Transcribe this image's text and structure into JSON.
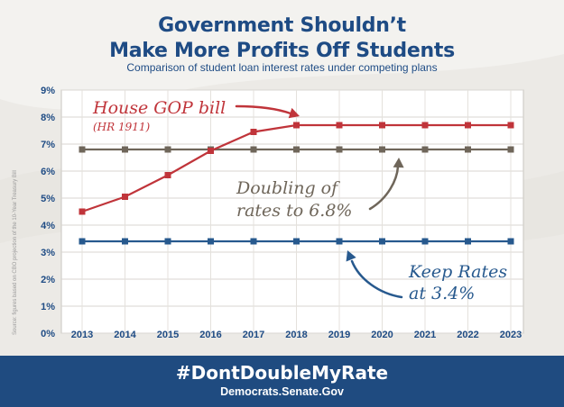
{
  "header": {
    "title_line1": "Government Shouldn’t",
    "title_line2": "Make More Profits Off Students",
    "subtitle": "Comparison of student loan interest rates under competing plans"
  },
  "source_note": "Source: figures based on CBO projection of the 10-Year Treasury Bill",
  "footer": {
    "hashtag": "#DontDoubleMyRate",
    "site": "Democrats.Senate.Gov"
  },
  "colors": {
    "title": "#1e4b84",
    "house_gop": "#c0343a",
    "doubling": "#6f665a",
    "keep_rates": "#27598e",
    "footer_bg": "#1f4b80"
  },
  "chart_data": {
    "type": "line",
    "x": [
      "2013",
      "2014",
      "2015",
      "2016",
      "2017",
      "2018",
      "2019",
      "2020",
      "2021",
      "2022",
      "2023"
    ],
    "y_ticks": [
      "0%",
      "1%",
      "2%",
      "3%",
      "4%",
      "5%",
      "6%",
      "7%",
      "8%",
      "9%"
    ],
    "ylim": [
      0,
      9
    ],
    "grid": true,
    "series": [
      {
        "key": "house_gop",
        "values": [
          4.5,
          5.05,
          5.85,
          6.75,
          7.45,
          7.7,
          7.7,
          7.7,
          7.7,
          7.7,
          7.7
        ]
      },
      {
        "key": "doubling",
        "values": [
          6.8,
          6.8,
          6.8,
          6.8,
          6.8,
          6.8,
          6.8,
          6.8,
          6.8,
          6.8,
          6.8
        ]
      },
      {
        "key": "keep_rates",
        "values": [
          3.4,
          3.4,
          3.4,
          3.4,
          3.4,
          3.4,
          3.4,
          3.4,
          3.4,
          3.4,
          3.4
        ]
      }
    ],
    "annotations": {
      "house_gop_line1": "House GOP bill",
      "house_gop_line2": "(HR 1911)",
      "doubling_line1": "Doubling of",
      "doubling_line2": "rates to 6.8%",
      "keep_line1": "Keep Rates",
      "keep_line2": "at 3.4%"
    }
  }
}
